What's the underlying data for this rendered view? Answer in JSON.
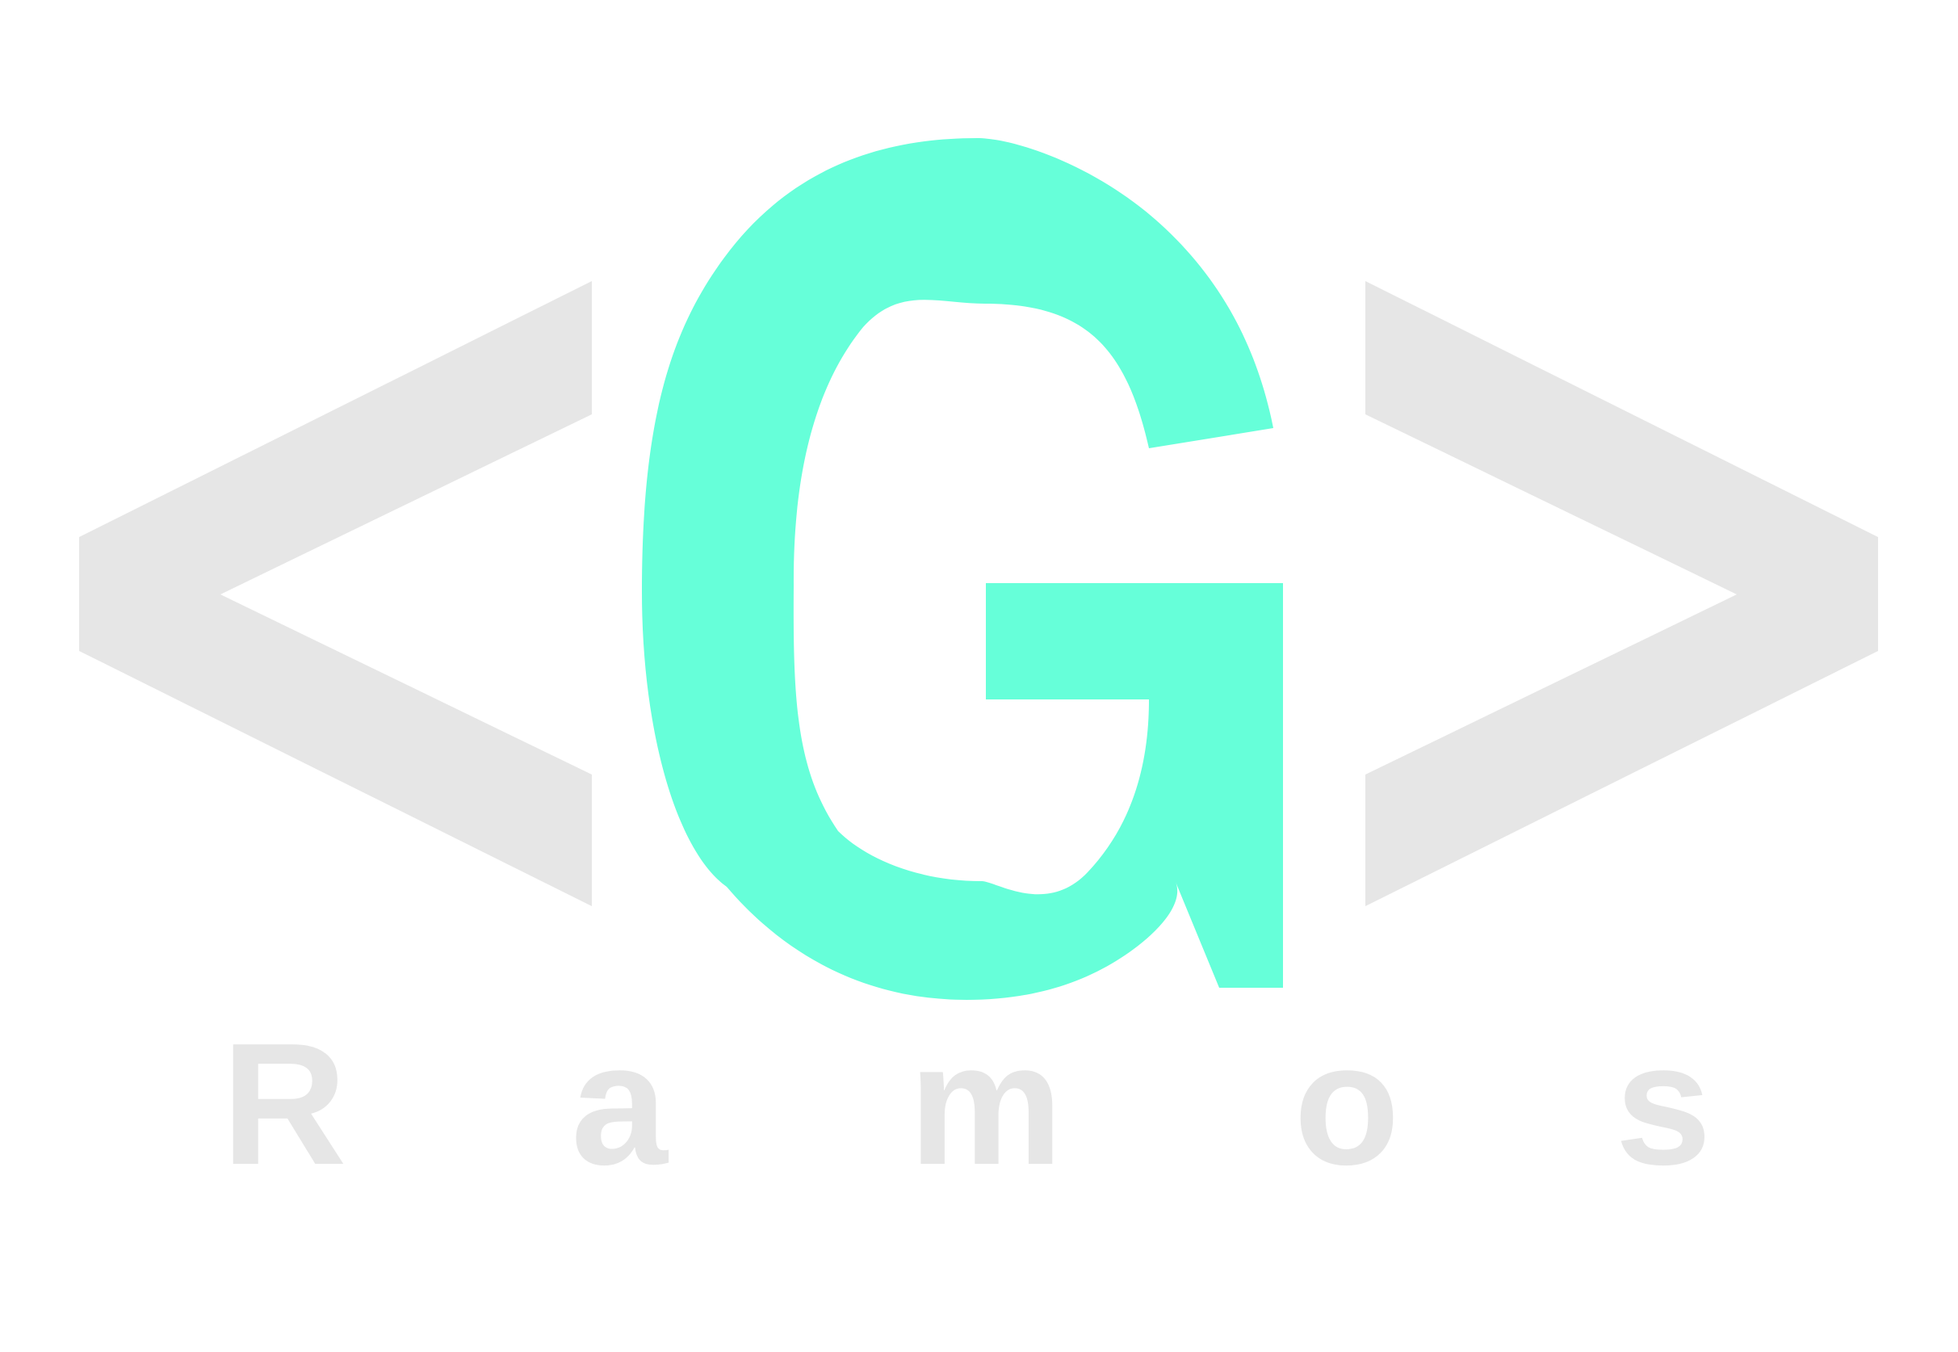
{
  "logo": {
    "monogram": "G",
    "name_letters": [
      "R",
      "a",
      "m",
      "o",
      "s"
    ]
  },
  "colors": {
    "background": "#ffffff",
    "accent": "#66ffd9",
    "muted": "#e6e6e6"
  }
}
